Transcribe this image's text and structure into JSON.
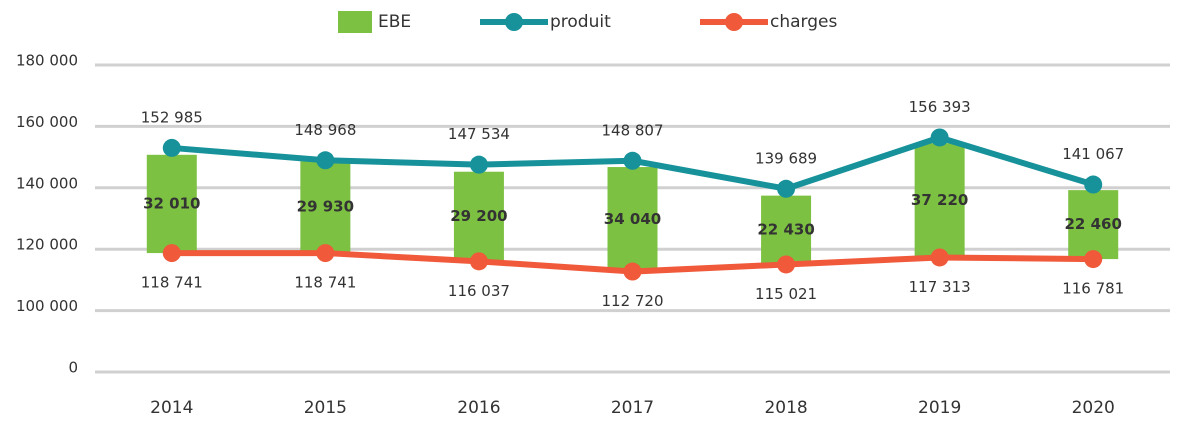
{
  "chart_data": {
    "type": "bar-line",
    "categories": [
      "2014",
      "2015",
      "2016",
      "2017",
      "2018",
      "2019",
      "2020"
    ],
    "series": [
      {
        "name": "EBE",
        "type": "bar",
        "color": "#7dc142",
        "stack_on": "charges",
        "values": [
          32010,
          29930,
          29200,
          34040,
          22430,
          37220,
          22460
        ],
        "value_labels": [
          "32 010",
          "29 930",
          "29 200",
          "34 040",
          "22 430",
          "37 220",
          "22 460"
        ]
      },
      {
        "name": "produit",
        "type": "line",
        "color": "#17929a",
        "values": [
          152985,
          148968,
          147534,
          148807,
          139689,
          156393,
          141067
        ],
        "value_labels": [
          "152 985",
          "148 968",
          "147 534",
          "148 807",
          "139 689",
          "156 393",
          "141 067"
        ]
      },
      {
        "name": "charges",
        "type": "line",
        "color": "#f05a3a",
        "values": [
          118741,
          118741,
          116037,
          112720,
          115021,
          117313,
          116781
        ],
        "value_labels": [
          "118 741",
          "118 741",
          "116 037",
          "112 720",
          "115 021",
          "117 313",
          "116 781"
        ]
      }
    ],
    "ylim": [
      0,
      180000
    ],
    "yticks": [
      0,
      {
        "value": 100000,
        "label": "100 000"
      },
      {
        "value": 120000,
        "label": "120 000"
      },
      {
        "value": 140000,
        "label": "140 000"
      },
      {
        "value": 160000,
        "label": "160 000"
      },
      {
        "value": 180000,
        "label": "180 000"
      }
    ],
    "y_scale": "broken",
    "grid": true,
    "legend": "top"
  }
}
